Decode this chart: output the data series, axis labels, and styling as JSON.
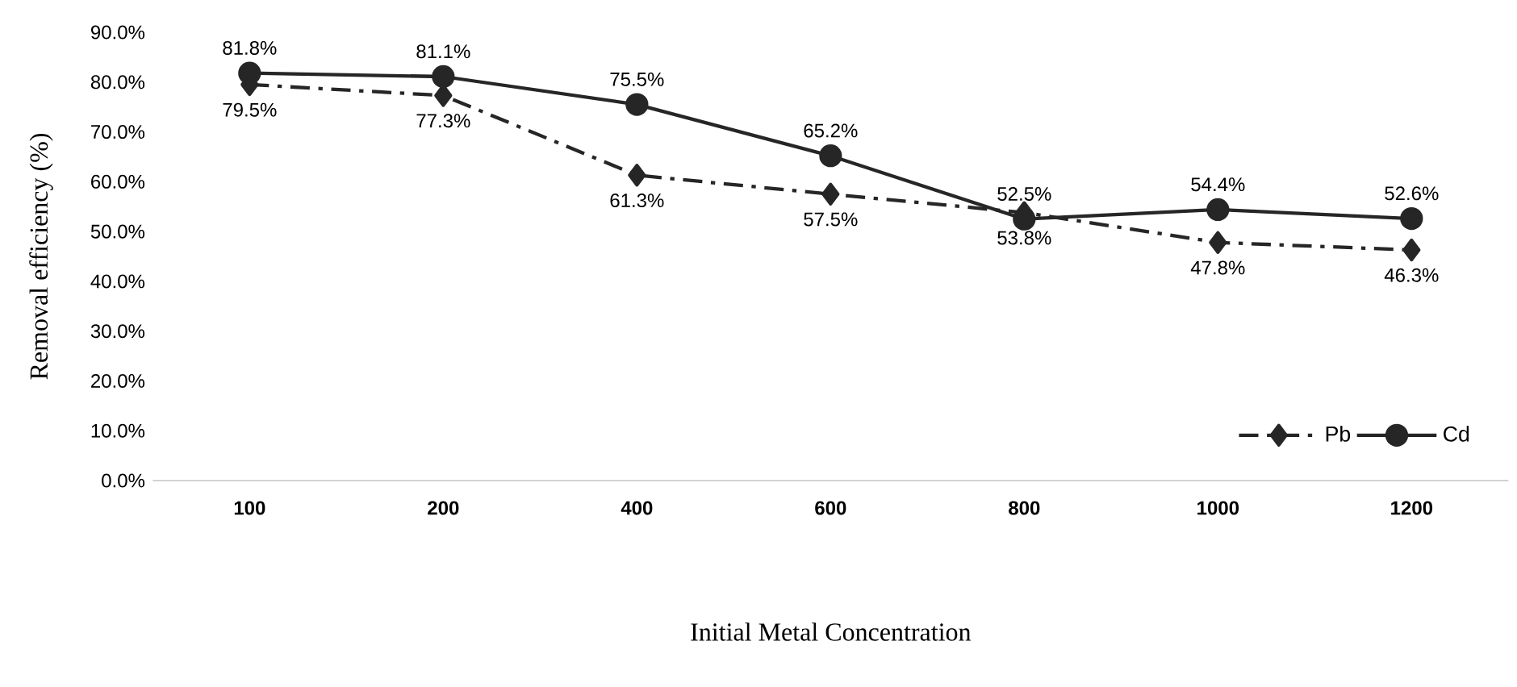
{
  "chart_data": {
    "type": "line",
    "xlabel": "Initial Metal Concentration",
    "ylabel": "Removal efficiency (%)",
    "categories": [
      "100",
      "200",
      "400",
      "600",
      "800",
      "1000",
      "1200"
    ],
    "ylim": [
      0,
      90
    ],
    "yticks": [
      {
        "value": 0,
        "label": "0.0%"
      },
      {
        "value": 10,
        "label": "10.0%"
      },
      {
        "value": 20,
        "label": "20.0%"
      },
      {
        "value": 30,
        "label": "30.0%"
      },
      {
        "value": 40,
        "label": "40.0%"
      },
      {
        "value": 50,
        "label": "50.0%"
      },
      {
        "value": 60,
        "label": "60.0%"
      },
      {
        "value": 70,
        "label": "70.0%"
      },
      {
        "value": 80,
        "label": "80.0%"
      },
      {
        "value": 90,
        "label": "90.0%"
      }
    ],
    "grid": false,
    "legend": "bottom right",
    "series": [
      {
        "name": "Pb",
        "color": "#262626",
        "marker": "diamond",
        "line_style": "dashed",
        "values": [
          79.5,
          77.3,
          61.3,
          57.5,
          53.8,
          47.8,
          46.3
        ],
        "value_labels": [
          "79.5%",
          "77.3%",
          "61.3%",
          "57.5%",
          "53.8%",
          "47.8%",
          "46.3%"
        ]
      },
      {
        "name": "Cd",
        "color": "#262626",
        "marker": "circle",
        "line_style": "solid",
        "values": [
          81.8,
          81.1,
          75.5,
          65.2,
          52.5,
          54.4,
          52.6
        ],
        "value_labels": [
          "81.8%",
          "81.1%",
          "75.5%",
          "65.2%",
          "52.5%",
          "54.4%",
          "52.6%"
        ]
      }
    ]
  }
}
